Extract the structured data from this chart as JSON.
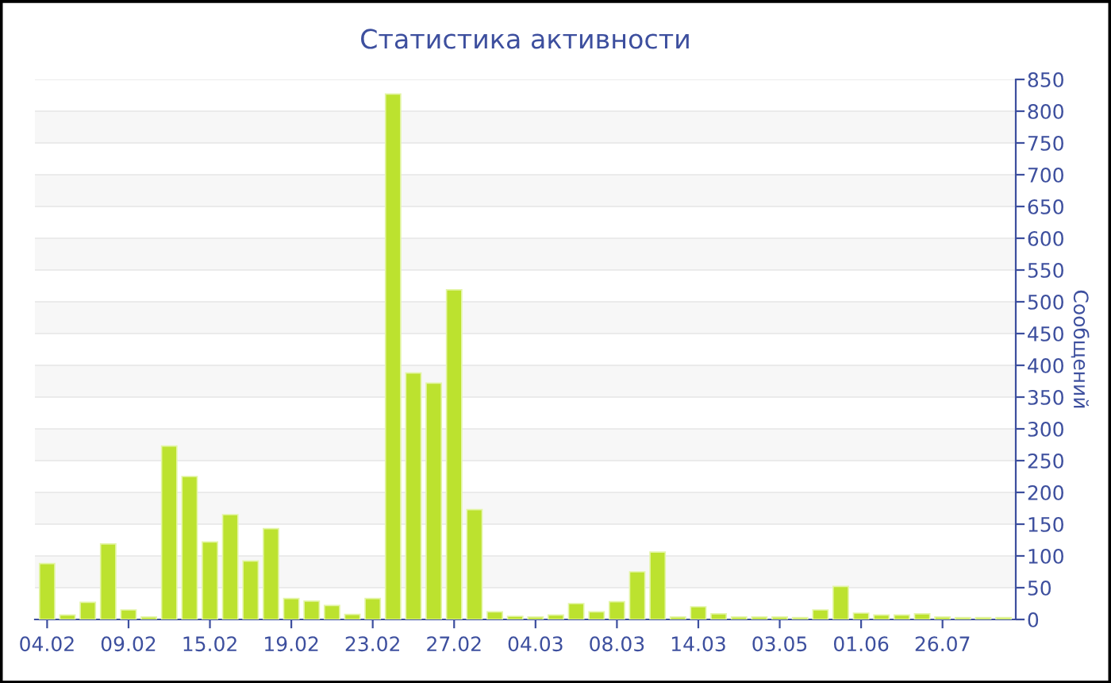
{
  "chart_data": {
    "type": "bar",
    "title": "Статистика активности",
    "ylabel": "Сообщений",
    "categories": [
      "04.02",
      null,
      null,
      null,
      "09.02",
      null,
      null,
      null,
      "15.02",
      null,
      null,
      null,
      "19.02",
      null,
      null,
      null,
      "23.02",
      null,
      null,
      null,
      "27.02",
      null,
      null,
      null,
      "04.03",
      null,
      null,
      null,
      "08.03",
      null,
      null,
      null,
      "14.03",
      null,
      null,
      null,
      "03.05",
      null,
      null,
      null,
      "01.06",
      null,
      null,
      null,
      "26.07",
      null,
      null,
      null
    ],
    "values": [
      88,
      7,
      27,
      119,
      15,
      4,
      273,
      225,
      122,
      165,
      92,
      143,
      33,
      29,
      22,
      8,
      33,
      827,
      388,
      372,
      519,
      173,
      12,
      5,
      4,
      7,
      25,
      12,
      28,
      75,
      106,
      4,
      20,
      9,
      4,
      4,
      4,
      3,
      15,
      52,
      10,
      7,
      7,
      9,
      4,
      3,
      3,
      3
    ],
    "color": "#bce22f",
    "ylim": [
      0,
      850
    ],
    "yticks": [
      0,
      50,
      100,
      150,
      200,
      250,
      300,
      350,
      400,
      450,
      500,
      550,
      600,
      650,
      700,
      750,
      800,
      850
    ],
    "grid": "y",
    "legend": false
  }
}
